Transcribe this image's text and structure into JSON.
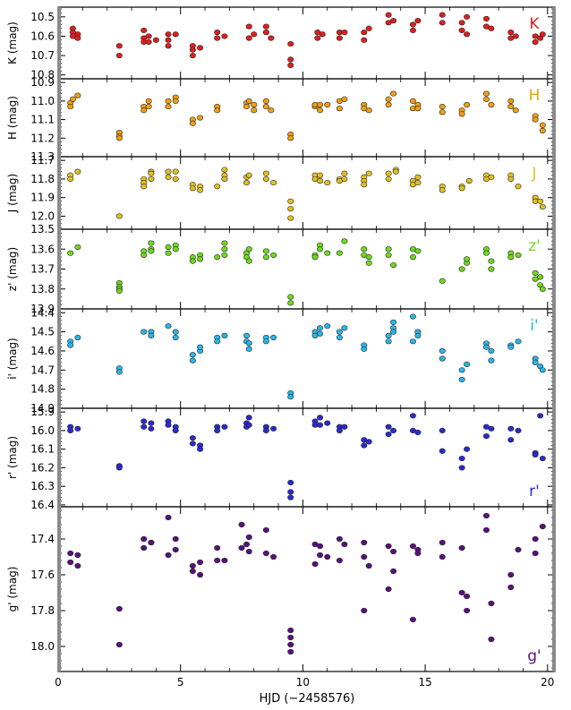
{
  "chart_data": {
    "type": "scatter",
    "xlabel": "HJD (−2458576)",
    "xlim": [
      0,
      20.3
    ],
    "xticks": [
      0,
      5,
      10,
      15,
      20
    ],
    "panels": [
      {
        "band": "K",
        "ylabel": "K (mag)",
        "color": "#e01e1e",
        "ylim": [
          10.45,
          10.82
        ],
        "yticks": [
          10.5,
          10.6,
          10.7,
          10.8
        ],
        "tick_decimals": 1,
        "x": [
          0.6,
          0.6,
          0.6,
          0.8,
          0.8,
          2.5,
          2.5,
          3.5,
          3.5,
          3.5,
          3.7,
          3.7,
          4.0,
          4.5,
          4.5,
          4.5,
          4.8,
          5.5,
          5.5,
          5.5,
          5.8,
          6.5,
          6.5,
          6.8,
          7.8,
          7.8,
          8.0,
          8.5,
          8.5,
          8.7,
          9.5,
          9.5,
          9.5,
          10.6,
          10.6,
          10.8,
          11.5,
          11.5,
          11.7,
          12.5,
          12.5,
          12.7,
          13.5,
          13.5,
          13.7,
          14.5,
          14.5,
          14.7,
          15.7,
          15.7,
          16.5,
          16.5,
          16.7,
          16.7,
          17.5,
          17.5,
          17.7,
          18.5,
          18.5,
          18.7,
          19.5,
          19.5,
          19.7,
          19.8
        ],
        "y": [
          10.56,
          10.58,
          10.6,
          10.59,
          10.61,
          10.65,
          10.7,
          10.57,
          10.61,
          10.63,
          10.6,
          10.63,
          10.62,
          10.59,
          10.62,
          10.65,
          10.59,
          10.65,
          10.67,
          10.7,
          10.66,
          10.58,
          10.61,
          10.6,
          10.55,
          10.61,
          10.59,
          10.55,
          10.58,
          10.61,
          10.64,
          10.72,
          10.75,
          10.58,
          10.61,
          10.59,
          10.58,
          10.61,
          10.58,
          10.58,
          10.62,
          10.56,
          10.49,
          10.53,
          10.52,
          10.54,
          10.57,
          10.52,
          10.49,
          10.53,
          10.53,
          10.57,
          10.59,
          10.5,
          10.51,
          10.55,
          10.56,
          10.58,
          10.61,
          10.6,
          10.6,
          10.63,
          10.61,
          10.59
        ]
      },
      {
        "band": "H",
        "ylabel": "H (mag)",
        "color": "#f0a010",
        "ylim": [
          10.88,
          11.3
        ],
        "yticks": [
          10.9,
          11.0,
          11.1,
          11.2,
          11.3
        ],
        "tick_decimals": 1,
        "x": [
          0.5,
          0.5,
          0.6,
          0.8,
          2.5,
          2.5,
          2.5,
          3.5,
          3.5,
          3.7,
          3.7,
          4.5,
          4.5,
          4.8,
          4.8,
          5.5,
          5.5,
          5.8,
          6.5,
          6.5,
          7.7,
          7.7,
          7.8,
          8.0,
          8.0,
          8.5,
          8.5,
          8.7,
          9.5,
          9.5,
          10.5,
          10.5,
          10.7,
          10.7,
          11.0,
          11.5,
          11.5,
          11.7,
          12.5,
          12.5,
          12.7,
          13.5,
          13.5,
          13.7,
          14.5,
          14.5,
          14.7,
          14.7,
          15.7,
          15.7,
          16.5,
          16.5,
          16.7,
          17.5,
          17.5,
          17.7,
          18.5,
          18.5,
          18.7,
          19.5,
          19.5,
          19.8,
          19.8
        ],
        "y": [
          11.01,
          11.03,
          10.99,
          10.97,
          11.17,
          11.19,
          11.2,
          11.03,
          11.05,
          11.0,
          11.03,
          11.0,
          11.03,
          10.98,
          11.0,
          11.1,
          11.12,
          11.09,
          11.03,
          11.05,
          11.01,
          11.03,
          11.0,
          11.05,
          11.02,
          11.0,
          11.03,
          11.05,
          11.18,
          11.2,
          11.03,
          11.02,
          11.02,
          11.05,
          11.02,
          11.0,
          11.04,
          10.99,
          11.02,
          11.04,
          11.05,
          11.02,
          10.99,
          10.96,
          11.04,
          11.0,
          11.02,
          11.04,
          11.03,
          11.06,
          11.05,
          11.07,
          11.02,
          10.96,
          10.99,
          11.02,
          11.0,
          11.03,
          11.05,
          11.08,
          11.1,
          11.13,
          11.16
        ]
      },
      {
        "band": "J",
        "ylabel": "J (mag)",
        "color": "#e3c020",
        "ylim": [
          11.68,
          12.07
        ],
        "yticks": [
          11.7,
          11.8,
          11.9,
          12.0
        ],
        "tick_decimals": 1,
        "x": [
          0.5,
          0.5,
          0.8,
          2.5,
          3.5,
          3.5,
          3.5,
          3.8,
          3.8,
          3.8,
          4.5,
          4.5,
          4.8,
          4.8,
          5.5,
          5.5,
          5.8,
          5.8,
          6.5,
          6.8,
          6.8,
          6.8,
          7.7,
          7.7,
          7.8,
          8.5,
          8.5,
          8.8,
          9.5,
          9.5,
          9.5,
          10.5,
          10.5,
          10.7,
          10.7,
          11.0,
          11.5,
          11.5,
          11.7,
          11.7,
          12.5,
          12.5,
          12.5,
          12.7,
          13.5,
          13.5,
          13.8,
          13.8,
          14.5,
          14.5,
          14.7,
          14.7,
          15.7,
          15.7,
          16.5,
          16.5,
          16.8,
          17.5,
          17.5,
          17.7,
          18.5,
          18.5,
          18.8,
          19.5,
          19.5,
          19.7,
          19.8
        ],
        "y": [
          11.78,
          11.8,
          11.76,
          12.0,
          11.8,
          11.82,
          11.84,
          11.76,
          11.77,
          11.8,
          11.76,
          11.79,
          11.76,
          11.8,
          11.83,
          11.85,
          11.84,
          11.86,
          11.84,
          11.78,
          11.8,
          11.75,
          11.82,
          11.79,
          11.78,
          11.77,
          11.8,
          11.82,
          11.92,
          11.96,
          12.01,
          11.78,
          11.8,
          11.78,
          11.81,
          11.82,
          11.8,
          11.81,
          11.77,
          11.8,
          11.79,
          11.81,
          11.83,
          11.77,
          11.8,
          11.77,
          11.75,
          11.76,
          11.81,
          11.83,
          11.79,
          11.82,
          11.84,
          11.86,
          11.84,
          11.85,
          11.81,
          11.78,
          11.8,
          11.79,
          11.78,
          11.8,
          11.84,
          11.9,
          11.92,
          11.92,
          11.95
        ]
      },
      {
        "band": "z'",
        "ylabel": "z' (mag)",
        "color": "#6fda1e",
        "ylim": [
          13.5,
          13.9
        ],
        "yticks": [
          13.5,
          13.6,
          13.7,
          13.8,
          13.9
        ],
        "tick_decimals": 1,
        "x": [
          0.5,
          0.8,
          2.5,
          2.5,
          2.5,
          2.5,
          3.5,
          3.5,
          3.8,
          3.8,
          3.8,
          4.5,
          4.5,
          4.8,
          4.8,
          5.5,
          5.5,
          5.8,
          5.8,
          6.5,
          6.8,
          6.8,
          6.8,
          7.7,
          7.7,
          7.8,
          7.8,
          8.5,
          8.5,
          8.8,
          9.5,
          9.5,
          10.5,
          10.5,
          10.7,
          10.7,
          11.0,
          11.5,
          11.7,
          12.5,
          12.5,
          12.7,
          12.7,
          13.5,
          13.5,
          13.7,
          14.5,
          14.5,
          14.7,
          15.7,
          16.5,
          16.7,
          16.7,
          17.5,
          17.5,
          17.7,
          17.7,
          18.5,
          18.5,
          18.8,
          19.5,
          19.5,
          19.7,
          19.7,
          19.8
        ],
        "y": [
          13.62,
          13.59,
          13.77,
          13.79,
          13.8,
          13.81,
          13.61,
          13.63,
          13.57,
          13.6,
          13.61,
          13.59,
          13.62,
          13.58,
          13.6,
          13.64,
          13.66,
          13.63,
          13.65,
          13.64,
          13.57,
          13.6,
          13.63,
          13.62,
          13.64,
          13.6,
          13.66,
          13.61,
          13.64,
          13.63,
          13.84,
          13.87,
          13.63,
          13.64,
          13.58,
          13.6,
          13.62,
          13.62,
          13.56,
          13.6,
          13.63,
          13.64,
          13.67,
          13.63,
          13.6,
          13.68,
          13.6,
          13.64,
          13.61,
          13.76,
          13.7,
          13.67,
          13.65,
          13.6,
          13.62,
          13.66,
          13.7,
          13.62,
          13.64,
          13.63,
          13.72,
          13.75,
          13.78,
          13.74,
          13.8
        ]
      },
      {
        "band": "i'",
        "ylabel": "i' (mag)",
        "color": "#29b6e8",
        "ylim": [
          14.38,
          14.9
        ],
        "yticks": [
          14.4,
          14.5,
          14.6,
          14.7,
          14.8,
          14.9
        ],
        "tick_decimals": 1,
        "x": [
          0.5,
          0.5,
          0.8,
          2.5,
          2.5,
          3.5,
          3.8,
          3.8,
          4.5,
          4.8,
          4.8,
          5.5,
          5.5,
          5.8,
          5.8,
          6.5,
          6.5,
          6.8,
          7.7,
          7.7,
          7.8,
          7.8,
          8.5,
          8.5,
          8.8,
          9.5,
          9.5,
          10.5,
          10.5,
          10.7,
          10.7,
          11.0,
          11.5,
          11.5,
          11.7,
          12.5,
          12.5,
          13.5,
          13.5,
          13.7,
          13.7,
          13.7,
          14.5,
          14.5,
          14.7,
          14.7,
          15.7,
          15.7,
          16.5,
          16.5,
          16.7,
          17.5,
          17.5,
          17.7,
          17.7,
          18.5,
          18.5,
          18.8,
          19.5,
          19.5,
          19.7,
          19.8
        ],
        "y": [
          14.55,
          14.57,
          14.53,
          14.69,
          14.71,
          14.5,
          14.5,
          14.52,
          14.47,
          14.5,
          14.53,
          14.62,
          14.65,
          14.6,
          14.58,
          14.53,
          14.55,
          14.52,
          14.52,
          14.55,
          14.56,
          14.59,
          14.53,
          14.55,
          14.53,
          14.82,
          14.84,
          14.5,
          14.52,
          14.48,
          14.51,
          14.47,
          14.5,
          14.53,
          14.48,
          14.57,
          14.59,
          14.52,
          14.55,
          14.45,
          14.48,
          14.5,
          14.42,
          14.55,
          14.5,
          14.52,
          14.6,
          14.64,
          14.7,
          14.75,
          14.67,
          14.56,
          14.58,
          14.6,
          14.65,
          14.57,
          14.58,
          14.55,
          14.64,
          14.66,
          14.68,
          14.7
        ]
      },
      {
        "band": "r'",
        "ylabel": "r' (mag)",
        "color": "#2a2ad0",
        "ylim": [
          15.88,
          16.41
        ],
        "yticks": [
          15.9,
          16.0,
          16.1,
          16.2,
          16.3,
          16.4
        ],
        "tick_decimals": 1,
        "x": [
          0.5,
          0.5,
          0.8,
          2.5,
          2.5,
          3.5,
          3.5,
          3.8,
          3.8,
          4.5,
          4.5,
          4.8,
          4.8,
          5.5,
          5.5,
          5.8,
          5.8,
          6.5,
          6.5,
          6.8,
          7.7,
          7.7,
          7.8,
          7.8,
          8.5,
          8.5,
          8.8,
          9.5,
          9.5,
          9.5,
          10.5,
          10.5,
          10.7,
          10.7,
          11.0,
          11.5,
          11.5,
          11.7,
          12.5,
          12.5,
          12.7,
          13.5,
          13.5,
          13.7,
          14.5,
          14.5,
          14.7,
          15.7,
          15.7,
          16.5,
          16.5,
          16.7,
          17.5,
          17.5,
          17.7,
          18.5,
          18.5,
          18.8,
          19.5,
          19.5,
          19.7,
          19.8
        ],
        "y": [
          15.98,
          16.0,
          15.99,
          16.19,
          16.2,
          15.95,
          15.98,
          15.96,
          15.99,
          15.95,
          15.97,
          15.98,
          16.0,
          16.04,
          16.07,
          16.08,
          16.1,
          15.98,
          16.0,
          15.98,
          15.96,
          15.98,
          15.93,
          15.97,
          15.98,
          16.0,
          15.99,
          16.28,
          16.33,
          16.36,
          15.95,
          15.97,
          15.93,
          15.97,
          15.96,
          15.98,
          16.0,
          15.98,
          16.05,
          16.08,
          16.06,
          15.98,
          16.02,
          16.0,
          15.92,
          16.0,
          16.01,
          16.0,
          16.11,
          16.15,
          16.2,
          16.1,
          15.98,
          16.03,
          15.99,
          15.99,
          16.05,
          16.0,
          16.12,
          16.13,
          15.92,
          16.15
        ]
      },
      {
        "band": "g'",
        "ylabel": "g' (mag)",
        "color": "#5a1080",
        "ylim": [
          17.22,
          18.14
        ],
        "yticks": [
          17.4,
          17.6,
          17.8,
          18.0
        ],
        "tick_decimals": 1,
        "x": [
          0.5,
          0.5,
          0.8,
          0.8,
          2.5,
          2.5,
          3.5,
          3.5,
          3.8,
          3.8,
          4.5,
          4.5,
          4.8,
          4.8,
          5.5,
          5.5,
          5.8,
          5.8,
          6.5,
          6.5,
          6.8,
          7.5,
          7.5,
          7.7,
          7.8,
          7.8,
          8.5,
          8.5,
          8.8,
          9.5,
          9.5,
          9.5,
          9.5,
          10.5,
          10.5,
          10.7,
          10.7,
          11.0,
          11.5,
          11.5,
          11.7,
          12.5,
          12.5,
          12.5,
          12.7,
          13.5,
          13.5,
          13.7,
          13.7,
          14.5,
          14.5,
          14.7,
          14.7,
          15.7,
          15.7,
          16.5,
          16.5,
          16.7,
          16.7,
          17.5,
          17.5,
          17.7,
          17.7,
          18.5,
          18.5,
          18.8,
          19.5,
          19.5,
          19.8
        ],
        "y": [
          17.48,
          17.53,
          17.49,
          17.55,
          17.79,
          17.99,
          17.4,
          17.45,
          17.42,
          17.42,
          17.28,
          17.49,
          17.4,
          17.46,
          17.55,
          17.58,
          17.53,
          17.6,
          17.45,
          17.52,
          17.52,
          17.32,
          17.45,
          17.43,
          17.39,
          17.47,
          17.35,
          17.48,
          17.5,
          17.91,
          17.95,
          17.99,
          18.03,
          17.43,
          17.54,
          17.44,
          17.49,
          17.5,
          17.4,
          17.52,
          17.43,
          17.42,
          17.5,
          17.8,
          17.55,
          17.44,
          17.68,
          17.47,
          17.58,
          17.44,
          17.85,
          17.46,
          17.48,
          17.42,
          17.5,
          17.45,
          17.7,
          17.72,
          17.8,
          17.27,
          17.35,
          17.76,
          17.96,
          17.6,
          17.67,
          17.46,
          17.4,
          17.48,
          17.33
        ]
      }
    ]
  }
}
